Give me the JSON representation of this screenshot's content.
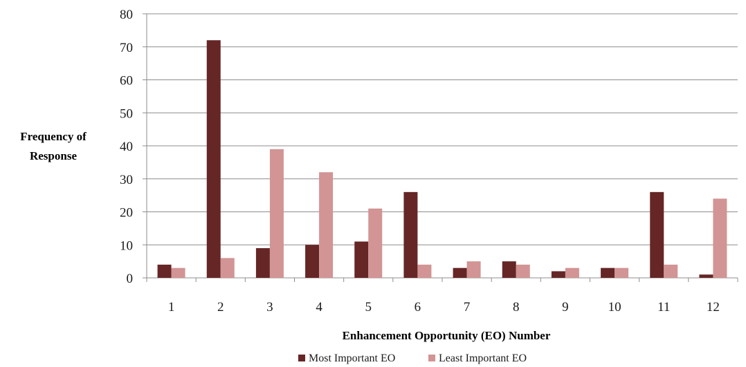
{
  "chart_data": {
    "type": "bar",
    "title": "",
    "xlabel": "Enhancement Opportunity (EO) Number",
    "ylabel_lines": [
      "Frequency of",
      "Response"
    ],
    "categories": [
      "1",
      "2",
      "3",
      "4",
      "5",
      "6",
      "7",
      "8",
      "9",
      "10",
      "11",
      "12"
    ],
    "y_ticks": [
      "0",
      "10",
      "20",
      "30",
      "40",
      "50",
      "60",
      "70",
      "80"
    ],
    "ylim": [
      0,
      80
    ],
    "grid": true,
    "legend_position": "bottom",
    "series": [
      {
        "name": "Most Important EO",
        "color": "#662626",
        "values": [
          4,
          72,
          9,
          10,
          11,
          26,
          3,
          5,
          2,
          3,
          26,
          1
        ]
      },
      {
        "name": "Least Important EO",
        "color": "#d29494",
        "values": [
          3,
          6,
          39,
          32,
          21,
          4,
          5,
          4,
          3,
          3,
          4,
          24
        ]
      }
    ]
  }
}
